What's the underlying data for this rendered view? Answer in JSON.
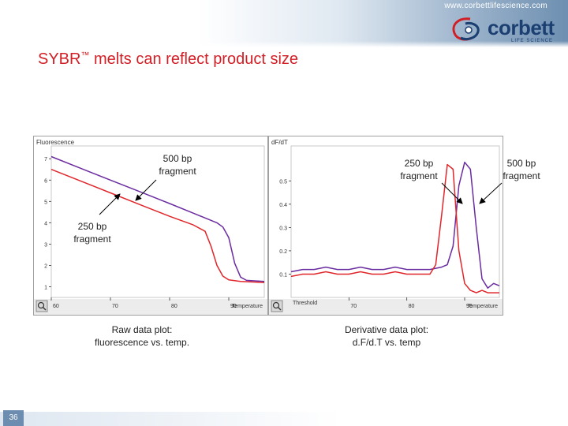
{
  "header": {
    "url": "www.corbettlifescience.com",
    "logo_word": "corbett",
    "logo_sub": "LIFE SCIENCE"
  },
  "slide": {
    "title": "SYBR",
    "title_tm": "™",
    "title_rest": " melts can reflect product size",
    "page_number": "36"
  },
  "colors": {
    "series_500bp": "#6a2ca0",
    "series_250bp": "#e0262a",
    "title": "#d11f26",
    "logo": "#1c3f72"
  },
  "annotations": {
    "left_500": [
      "500 bp",
      "fragment"
    ],
    "left_250": [
      "250 bp",
      "fragment"
    ],
    "right_250": [
      "250 bp",
      "fragment"
    ],
    "right_500": [
      "500 bp",
      "fragment"
    ]
  },
  "captions": {
    "left": [
      "Raw data plot:",
      "fluorescence vs. temp."
    ],
    "right": [
      "Derivative data plot:",
      "d.F/d.T vs. temp"
    ]
  },
  "chart_data": [
    {
      "type": "line",
      "title": "",
      "ylabel": "Fluorescence",
      "xlabel": "Temperature",
      "xlim": [
        60,
        96
      ],
      "ylim": [
        0.5,
        7.6
      ],
      "x_ticks": [
        60,
        70,
        80,
        90
      ],
      "x_tick_labels": [
        "60",
        "70",
        "80",
        "90"
      ],
      "y_ticks": [
        1,
        2,
        3,
        4,
        5,
        6,
        7
      ],
      "y_tick_labels": [
        "1",
        "2",
        "3",
        "4",
        "5",
        "6",
        "7"
      ],
      "grid": false,
      "series": [
        {
          "name": "500 bp fragment",
          "x": [
            60,
            65,
            70,
            75,
            80,
            84,
            88,
            89,
            90,
            91,
            92,
            93,
            96
          ],
          "y": [
            7.1,
            6.55,
            6.0,
            5.45,
            4.9,
            4.45,
            4.0,
            3.8,
            3.3,
            2.1,
            1.45,
            1.3,
            1.25
          ]
        },
        {
          "name": "250 bp fragment",
          "x": [
            60,
            65,
            70,
            75,
            80,
            84,
            86,
            87,
            88,
            89,
            90,
            92,
            96
          ],
          "y": [
            6.5,
            5.95,
            5.4,
            4.85,
            4.3,
            3.9,
            3.6,
            2.9,
            2.0,
            1.5,
            1.32,
            1.25,
            1.2
          ]
        }
      ]
    },
    {
      "type": "line",
      "title": "",
      "ylabel": "dF/dT",
      "xlabel": "Temperature",
      "xlim": [
        60,
        96
      ],
      "ylim": [
        0,
        0.65
      ],
      "x_ticks": [
        70,
        80,
        90
      ],
      "x_tick_labels": [
        "70",
        "80",
        "90"
      ],
      "y_ticks": [
        0.1,
        0.2,
        0.3,
        0.4,
        0.5
      ],
      "y_tick_labels": [
        "0.1",
        "0.2",
        "0.3",
        "0.4",
        "0.5"
      ],
      "threshold_label": "Threshold",
      "grid": false,
      "series": [
        {
          "name": "500 bp fragment",
          "x": [
            60,
            62,
            64,
            66,
            68,
            70,
            72,
            74,
            76,
            78,
            80,
            82,
            84,
            86,
            87,
            88,
            89,
            90,
            91,
            92,
            93,
            94,
            95,
            96
          ],
          "y": [
            0.11,
            0.12,
            0.12,
            0.13,
            0.12,
            0.12,
            0.13,
            0.12,
            0.12,
            0.13,
            0.12,
            0.12,
            0.12,
            0.13,
            0.14,
            0.22,
            0.48,
            0.58,
            0.55,
            0.3,
            0.08,
            0.04,
            0.06,
            0.05
          ]
        },
        {
          "name": "250 bp fragment",
          "x": [
            60,
            62,
            64,
            66,
            68,
            70,
            72,
            74,
            76,
            78,
            80,
            82,
            84,
            85,
            86,
            87,
            88,
            89,
            90,
            91,
            92,
            93,
            94,
            96
          ],
          "y": [
            0.09,
            0.1,
            0.1,
            0.11,
            0.1,
            0.1,
            0.11,
            0.1,
            0.1,
            0.11,
            0.1,
            0.1,
            0.1,
            0.14,
            0.35,
            0.57,
            0.55,
            0.2,
            0.06,
            0.03,
            0.02,
            0.03,
            0.02,
            0.02
          ]
        }
      ]
    }
  ]
}
